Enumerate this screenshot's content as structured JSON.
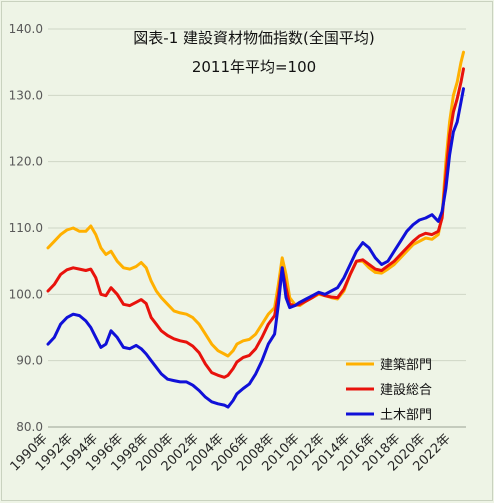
{
  "chart_data": {
    "type": "line",
    "title": "図表-1 建設資材物価指数(全国平均)",
    "subtitle": "2011年平均=100",
    "xlabel": "",
    "ylabel": "",
    "ylim": [
      80,
      140
    ],
    "yticks": [
      80,
      90,
      100,
      110,
      120,
      130,
      140
    ],
    "ytick_labels": [
      "80.0",
      "90.0",
      "100.0",
      "110.0",
      "120.0",
      "130.0",
      "140.0"
    ],
    "xlim": [
      1990,
      2023.2
    ],
    "xtick_labels": [
      "1990年",
      "1992年",
      "1994年",
      "1996年",
      "1998年",
      "2000年",
      "2002年",
      "2004年",
      "2006年",
      "2008年",
      "2010年",
      "2012年",
      "2014年",
      "2016年",
      "2018年",
      "2020年",
      "2022年"
    ],
    "xtick_positions": [
      1990,
      1992,
      1994,
      1996,
      1998,
      2000,
      2002,
      2004,
      2006,
      2008,
      2010,
      2012,
      2014,
      2016,
      2018,
      2020,
      2022
    ],
    "grid": true,
    "legend_position": "bottom-right",
    "series": [
      {
        "name": "建築部門",
        "color": "#ffb000",
        "x": [
          1990.0,
          1990.5,
          1991.0,
          1991.5,
          1992.0,
          1992.5,
          1993.0,
          1993.4,
          1993.8,
          1994.2,
          1994.6,
          1995.0,
          1995.5,
          1996.0,
          1996.5,
          1997.0,
          1997.4,
          1997.8,
          1998.2,
          1998.6,
          1999.0,
          1999.5,
          2000.0,
          2000.5,
          2001.0,
          2001.5,
          2002.0,
          2002.5,
          2003.0,
          2003.5,
          2004.0,
          2004.3,
          2004.7,
          2005.0,
          2005.5,
          2006.0,
          2006.5,
          2007.0,
          2007.5,
          2008.0,
          2008.3,
          2008.6,
          2008.9,
          2009.2,
          2009.6,
          2010.0,
          2010.5,
          2011.0,
          2011.5,
          2012.0,
          2012.5,
          2013.0,
          2013.5,
          2014.0,
          2014.5,
          2015.0,
          2015.5,
          2016.0,
          2016.5,
          2017.0,
          2017.5,
          2018.0,
          2018.5,
          2019.0,
          2019.5,
          2020.0,
          2020.5,
          2021.0,
          2021.3,
          2021.6,
          2021.9,
          2022.2,
          2022.5,
          2022.8,
          2023.0
        ],
        "values": [
          107.0,
          108.0,
          109.0,
          109.7,
          110.0,
          109.5,
          109.5,
          110.3,
          109.0,
          107.0,
          106.0,
          106.5,
          105.0,
          104.0,
          103.8,
          104.2,
          104.8,
          104.0,
          102.0,
          100.5,
          99.5,
          98.5,
          97.5,
          97.2,
          97.0,
          96.5,
          95.5,
          94.0,
          92.5,
          91.5,
          91.0,
          90.7,
          91.5,
          92.5,
          93.0,
          93.2,
          94.0,
          95.5,
          97.0,
          98.0,
          101.5,
          105.5,
          103.0,
          99.5,
          98.5,
          98.3,
          99.0,
          99.5,
          100.0,
          99.8,
          99.5,
          99.3,
          100.5,
          103.0,
          105.0,
          105.0,
          104.0,
          103.3,
          103.2,
          103.8,
          104.5,
          105.5,
          106.5,
          107.5,
          108.0,
          108.5,
          108.3,
          109.0,
          112.0,
          120.0,
          126.0,
          130.0,
          132.0,
          135.0,
          136.5
        ]
      },
      {
        "name": "建設総合",
        "color": "#e8120c",
        "x": [
          1990.0,
          1990.5,
          1991.0,
          1991.5,
          1992.0,
          1992.5,
          1993.0,
          1993.4,
          1993.8,
          1994.2,
          1994.6,
          1995.0,
          1995.5,
          1996.0,
          1996.5,
          1997.0,
          1997.4,
          1997.8,
          1998.2,
          1998.6,
          1999.0,
          1999.5,
          2000.0,
          2000.5,
          2001.0,
          2001.5,
          2002.0,
          2002.5,
          2003.0,
          2003.5,
          2004.0,
          2004.3,
          2004.7,
          2005.0,
          2005.5,
          2006.0,
          2006.5,
          2007.0,
          2007.5,
          2008.0,
          2008.3,
          2008.6,
          2008.9,
          2009.2,
          2009.6,
          2010.0,
          2010.5,
          2011.0,
          2011.5,
          2012.0,
          2012.5,
          2013.0,
          2013.5,
          2014.0,
          2014.5,
          2015.0,
          2015.5,
          2016.0,
          2016.5,
          2017.0,
          2017.5,
          2018.0,
          2018.5,
          2019.0,
          2019.5,
          2020.0,
          2020.5,
          2021.0,
          2021.3,
          2021.6,
          2021.9,
          2022.2,
          2022.5,
          2022.8,
          2023.0
        ],
        "values": [
          100.5,
          101.5,
          103.0,
          103.7,
          104.0,
          103.8,
          103.6,
          103.8,
          102.5,
          100.0,
          99.8,
          101.0,
          100.0,
          98.5,
          98.3,
          98.8,
          99.2,
          98.6,
          96.5,
          95.5,
          94.5,
          93.8,
          93.3,
          93.0,
          92.8,
          92.2,
          91.2,
          89.5,
          88.2,
          87.8,
          87.5,
          87.8,
          88.8,
          89.8,
          90.5,
          90.8,
          91.8,
          93.5,
          95.5,
          96.8,
          100.0,
          104.0,
          101.0,
          98.5,
          98.3,
          98.5,
          99.0,
          99.5,
          100.2,
          99.8,
          99.6,
          99.5,
          100.8,
          103.0,
          105.0,
          105.2,
          104.5,
          103.8,
          103.6,
          104.3,
          105.0,
          106.0,
          107.0,
          108.0,
          108.8,
          109.2,
          109.0,
          109.5,
          111.5,
          118.0,
          124.0,
          127.5,
          129.5,
          132.0,
          134.0
        ]
      },
      {
        "name": "土木部門",
        "color": "#1010d8",
        "x": [
          1990.0,
          1990.5,
          1991.0,
          1991.5,
          1992.0,
          1992.5,
          1993.0,
          1993.4,
          1993.8,
          1994.2,
          1994.6,
          1995.0,
          1995.5,
          1996.0,
          1996.5,
          1997.0,
          1997.4,
          1997.8,
          1998.2,
          1998.6,
          1999.0,
          1999.5,
          2000.0,
          2000.5,
          2001.0,
          2001.5,
          2002.0,
          2002.5,
          2003.0,
          2003.5,
          2004.0,
          2004.3,
          2004.7,
          2005.0,
          2005.5,
          2006.0,
          2006.5,
          2007.0,
          2007.5,
          2008.0,
          2008.3,
          2008.6,
          2008.9,
          2009.2,
          2009.6,
          2010.0,
          2010.5,
          2011.0,
          2011.5,
          2012.0,
          2012.5,
          2013.0,
          2013.5,
          2014.0,
          2014.5,
          2015.0,
          2015.5,
          2016.0,
          2016.5,
          2017.0,
          2017.5,
          2018.0,
          2018.5,
          2019.0,
          2019.5,
          2020.0,
          2020.5,
          2021.0,
          2021.3,
          2021.6,
          2021.9,
          2022.2,
          2022.5,
          2022.8,
          2023.0
        ],
        "values": [
          92.5,
          93.5,
          95.5,
          96.5,
          97.0,
          96.8,
          96.0,
          95.0,
          93.5,
          92.0,
          92.5,
          94.5,
          93.5,
          92.0,
          91.8,
          92.3,
          91.8,
          91.0,
          90.0,
          89.0,
          88.0,
          87.2,
          87.0,
          86.8,
          86.8,
          86.3,
          85.5,
          84.5,
          83.8,
          83.5,
          83.3,
          83.0,
          84.0,
          85.0,
          85.8,
          86.5,
          88.0,
          90.0,
          92.5,
          94.0,
          98.5,
          104.0,
          99.5,
          98.0,
          98.3,
          98.8,
          99.3,
          99.8,
          100.3,
          100.0,
          100.5,
          101.0,
          102.5,
          104.5,
          106.5,
          107.8,
          107.0,
          105.5,
          104.5,
          105.0,
          106.5,
          108.0,
          109.5,
          110.5,
          111.2,
          111.5,
          112.0,
          111.0,
          112.5,
          116.0,
          121.0,
          124.5,
          126.0,
          129.0,
          131.0
        ]
      }
    ]
  }
}
